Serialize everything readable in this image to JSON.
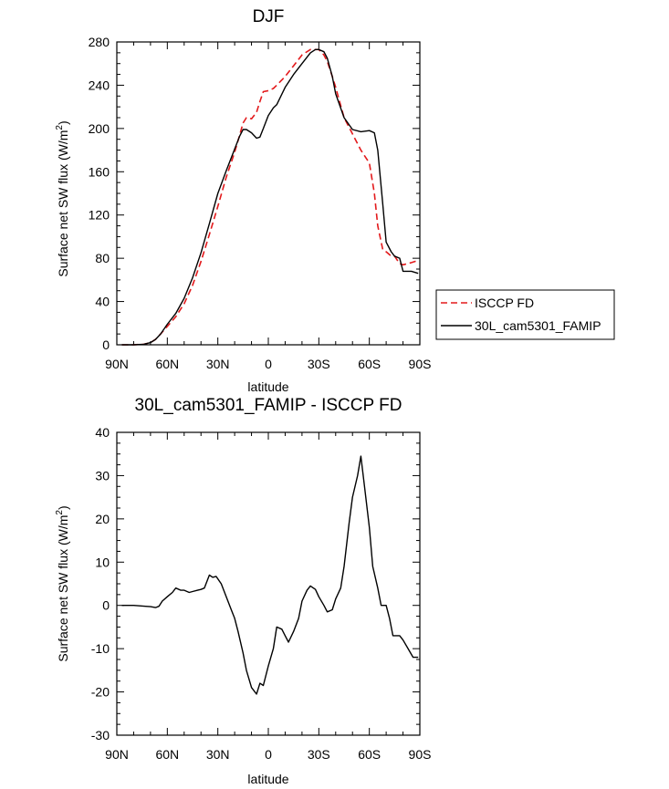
{
  "chart_data": [
    {
      "type": "line",
      "title": "DJF",
      "xlabel": "latitude",
      "ylabel": "Surface net SW flux (W/m",
      "ylabel_sup": "2",
      "ylabel_close": ")",
      "xlim": [
        90,
        -90
      ],
      "ylim": [
        0,
        280
      ],
      "x_ticks": [
        90,
        60,
        30,
        0,
        -30,
        -60,
        -90
      ],
      "x_tick_labels": [
        "90N",
        "60N",
        "30N",
        "0",
        "30S",
        "60S",
        "90S"
      ],
      "y_ticks": [
        0,
        40,
        80,
        120,
        160,
        200,
        240,
        280
      ],
      "y_tick_labels": [
        "0",
        "40",
        "80",
        "120",
        "160",
        "200",
        "240",
        "280"
      ],
      "legend": {
        "location": "right",
        "entries": [
          {
            "label": "ISCCP FD",
            "color": "#e31a1c",
            "dash": "dashed"
          },
          {
            "label": "30L_cam5301_FAMIP",
            "color": "#000000",
            "dash": "solid"
          }
        ]
      },
      "series": [
        {
          "name": "ISCCP FD",
          "color": "#e31a1c",
          "dash": "dashed",
          "x": [
            87,
            80,
            74,
            70,
            67,
            64,
            60,
            55,
            50,
            45,
            40,
            35,
            30,
            25,
            20,
            17,
            15,
            13,
            10,
            7,
            5,
            3,
            0,
            -3,
            -5,
            -10,
            -15,
            -20,
            -25,
            -30,
            -33,
            -35,
            -38,
            -40,
            -45,
            -50,
            -55,
            -60,
            -63,
            -65,
            -68,
            -70,
            -73,
            -75,
            -78,
            -80,
            -85,
            -89
          ],
          "y": [
            0,
            0,
            0.5,
            2,
            5,
            10,
            17,
            26,
            38,
            55,
            77,
            102,
            128,
            155,
            178,
            194,
            205,
            210,
            209,
            215,
            225,
            234,
            235,
            237,
            240,
            248,
            258,
            268,
            273,
            273,
            268,
            262,
            248,
            238,
            210,
            195,
            180,
            168,
            140,
            110,
            88,
            86,
            82,
            82,
            75,
            74,
            76,
            78
          ]
        },
        {
          "name": "30L_cam5301_FAMIP",
          "color": "#000000",
          "dash": "solid",
          "x": [
            87,
            80,
            74,
            70,
            67,
            64,
            60,
            55,
            50,
            45,
            40,
            35,
            30,
            25,
            20,
            17,
            15,
            13,
            10,
            7,
            5,
            3,
            0,
            -3,
            -5,
            -10,
            -15,
            -20,
            -25,
            -28,
            -30,
            -33,
            -35,
            -38,
            -40,
            -45,
            -50,
            -55,
            -60,
            -63,
            -65,
            -68,
            -70,
            -73,
            -75,
            -78,
            -80,
            -85,
            -89
          ],
          "y": [
            0,
            0,
            0.5,
            2,
            5,
            10,
            19,
            29,
            43,
            62,
            85,
            112,
            140,
            161,
            181,
            193,
            199,
            199,
            196,
            191,
            192,
            200,
            212,
            219,
            222,
            238,
            250,
            260,
            270,
            273,
            273,
            271,
            265,
            248,
            232,
            210,
            199,
            197,
            198,
            196,
            180,
            130,
            95,
            86,
            82,
            80,
            68,
            68,
            66
          ]
        }
      ]
    },
    {
      "type": "line",
      "title": "30L_cam5301_FAMIP - ISCCP FD",
      "xlabel": "latitude",
      "ylabel": "Surface net SW flux (W/m",
      "ylabel_sup": "2",
      "ylabel_close": ")",
      "xlim": [
        90,
        -90
      ],
      "ylim": [
        -30,
        40
      ],
      "x_ticks": [
        90,
        60,
        30,
        0,
        -30,
        -60,
        -90
      ],
      "x_tick_labels": [
        "90N",
        "60N",
        "30N",
        "0",
        "30S",
        "60S",
        "90S"
      ],
      "y_ticks": [
        -30,
        -20,
        -10,
        0,
        10,
        20,
        30,
        40
      ],
      "y_tick_labels": [
        "-30",
        "-20",
        "-10",
        "0",
        "10",
        "20",
        "30",
        "40"
      ],
      "series": [
        {
          "name": "30L_cam5301_FAMIP - ISCCP FD",
          "color": "#000000",
          "dash": "solid",
          "x": [
            87,
            80,
            73,
            70,
            67,
            65,
            63,
            60,
            57,
            55,
            52,
            50,
            47,
            45,
            42,
            40,
            38,
            35,
            33,
            31,
            28,
            25,
            22,
            20,
            18,
            15,
            13,
            10,
            7,
            5,
            3,
            0,
            -3,
            -5,
            -8,
            -10,
            -12,
            -15,
            -18,
            -20,
            -23,
            -25,
            -28,
            -30,
            -33,
            -35,
            -38,
            -40,
            -43,
            -45,
            -48,
            -50,
            -53,
            -55,
            -57,
            -60,
            -62,
            -65,
            -67,
            -70,
            -72,
            -74,
            -76,
            -78,
            -80,
            -83,
            -86,
            -89
          ],
          "y": [
            0,
            0,
            -0.2,
            -0.3,
            -0.5,
            -0.2,
            1,
            2,
            3,
            4,
            3.5,
            3.5,
            3,
            3.2,
            3.5,
            3.7,
            4,
            7,
            6.5,
            6.7,
            5,
            2,
            -1,
            -3,
            -6,
            -11,
            -15,
            -19,
            -20.5,
            -18,
            -18.5,
            -14,
            -10,
            -5,
            -5.5,
            -7,
            -8.5,
            -6,
            -3,
            1,
            3.5,
            4.5,
            3.7,
            2,
            0,
            -1.5,
            -1,
            1.5,
            4,
            9,
            19,
            25,
            30,
            34.5,
            28,
            18,
            9,
            4,
            0,
            0,
            -3,
            -7,
            -7,
            -7,
            -8,
            -10,
            -12,
            -12
          ]
        }
      ]
    }
  ]
}
